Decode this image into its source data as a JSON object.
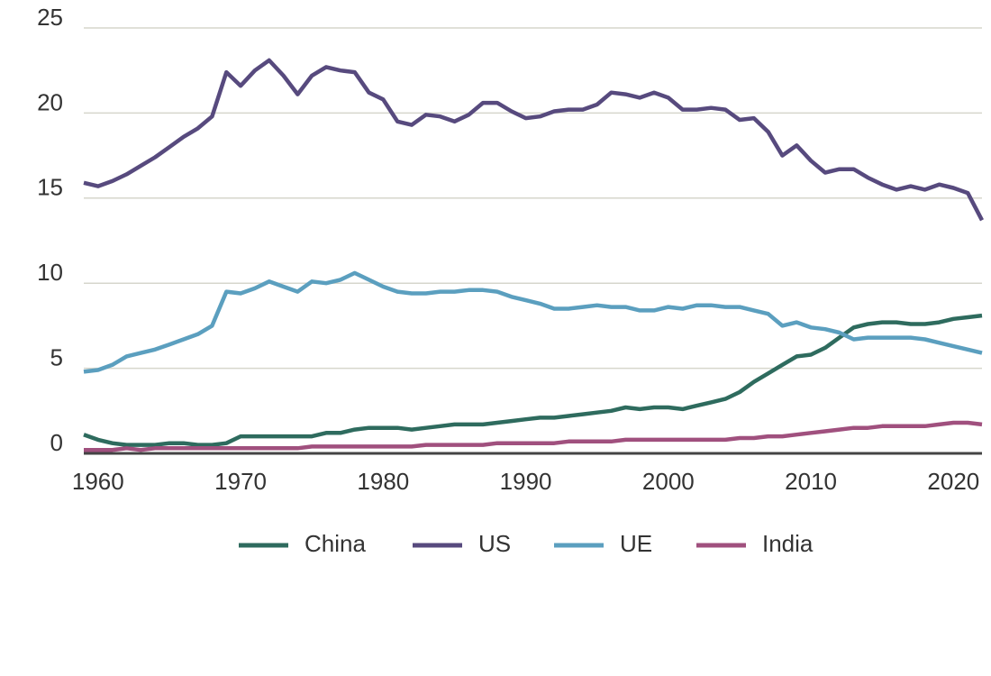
{
  "chart_data": {
    "type": "line",
    "x": [
      1959,
      1960,
      1961,
      1962,
      1963,
      1964,
      1965,
      1966,
      1967,
      1968,
      1969,
      1970,
      1971,
      1972,
      1973,
      1974,
      1975,
      1976,
      1977,
      1978,
      1979,
      1980,
      1981,
      1982,
      1983,
      1984,
      1985,
      1986,
      1987,
      1988,
      1989,
      1990,
      1991,
      1992,
      1993,
      1994,
      1995,
      1996,
      1997,
      1998,
      1999,
      2000,
      2001,
      2002,
      2003,
      2004,
      2005,
      2006,
      2007,
      2008,
      2009,
      2010,
      2011,
      2012,
      2013,
      2014,
      2015,
      2016,
      2017,
      2018,
      2019,
      2020,
      2021,
      2022
    ],
    "series": [
      {
        "name": "China",
        "color": "#2e6b5e",
        "values": [
          1.1,
          0.8,
          0.6,
          0.5,
          0.5,
          0.5,
          0.6,
          0.6,
          0.5,
          0.5,
          0.6,
          1.0,
          1.0,
          1.0,
          1.0,
          1.0,
          1.0,
          1.2,
          1.2,
          1.4,
          1.5,
          1.5,
          1.5,
          1.4,
          1.5,
          1.6,
          1.7,
          1.7,
          1.7,
          1.8,
          1.9,
          2.0,
          2.1,
          2.1,
          2.2,
          2.3,
          2.4,
          2.5,
          2.7,
          2.6,
          2.7,
          2.7,
          2.6,
          2.8,
          3.0,
          3.2,
          3.6,
          4.2,
          4.7,
          5.2,
          5.7,
          5.8,
          6.2,
          6.8,
          7.4,
          7.6,
          7.7,
          7.7,
          7.6,
          7.6,
          7.7,
          7.9,
          8.0,
          8.1
        ]
      },
      {
        "name": "US",
        "color": "#574a7e",
        "values": [
          15.9,
          15.7,
          16.0,
          16.4,
          16.9,
          17.4,
          18.0,
          18.6,
          19.1,
          19.8,
          22.4,
          21.6,
          22.5,
          23.1,
          22.2,
          21.1,
          22.2,
          22.7,
          22.5,
          22.4,
          21.2,
          20.8,
          19.5,
          19.3,
          19.9,
          19.8,
          19.5,
          19.9,
          20.6,
          20.6,
          20.1,
          19.7,
          19.8,
          20.1,
          20.2,
          20.2,
          20.5,
          21.2,
          21.1,
          20.9,
          21.2,
          20.9,
          20.2,
          20.2,
          20.3,
          20.2,
          19.6,
          19.7,
          18.9,
          17.5,
          18.1,
          17.2,
          16.5,
          16.7,
          16.7,
          16.2,
          15.8,
          15.5,
          15.7,
          15.5,
          15.8,
          15.6,
          15.3,
          13.7
        ]
      },
      {
        "name": "UE",
        "color": "#5b9fbf",
        "values": [
          4.8,
          4.9,
          5.2,
          5.7,
          5.9,
          6.1,
          6.4,
          6.7,
          7.0,
          7.5,
          9.5,
          9.4,
          9.7,
          10.1,
          9.8,
          9.5,
          10.1,
          10.0,
          10.2,
          10.6,
          10.2,
          9.8,
          9.5,
          9.4,
          9.4,
          9.5,
          9.5,
          9.6,
          9.6,
          9.5,
          9.2,
          9.0,
          8.8,
          8.5,
          8.5,
          8.6,
          8.7,
          8.6,
          8.6,
          8.4,
          8.4,
          8.6,
          8.5,
          8.7,
          8.7,
          8.6,
          8.6,
          8.4,
          8.2,
          7.5,
          7.7,
          7.4,
          7.3,
          7.1,
          6.7,
          6.8,
          6.8,
          6.8,
          6.8,
          6.7,
          6.5,
          6.3,
          6.1,
          5.9
        ]
      },
      {
        "name": "India",
        "color": "#a0507e",
        "values": [
          0.2,
          0.2,
          0.2,
          0.3,
          0.2,
          0.3,
          0.3,
          0.3,
          0.3,
          0.3,
          0.3,
          0.3,
          0.3,
          0.3,
          0.3,
          0.3,
          0.4,
          0.4,
          0.4,
          0.4,
          0.4,
          0.4,
          0.4,
          0.4,
          0.5,
          0.5,
          0.5,
          0.5,
          0.5,
          0.6,
          0.6,
          0.6,
          0.6,
          0.6,
          0.7,
          0.7,
          0.7,
          0.7,
          0.8,
          0.8,
          0.8,
          0.8,
          0.8,
          0.8,
          0.8,
          0.8,
          0.9,
          0.9,
          1.0,
          1.0,
          1.1,
          1.2,
          1.3,
          1.4,
          1.5,
          1.5,
          1.6,
          1.6,
          1.6,
          1.6,
          1.7,
          1.8,
          1.8,
          1.7
        ]
      }
    ],
    "xlim": [
      1959,
      2022
    ],
    "xticks": [
      1960,
      1970,
      1980,
      1990,
      2000,
      2010,
      2020
    ],
    "ylim": [
      0,
      25
    ],
    "yticks": [
      0,
      5,
      10,
      15,
      20,
      25
    ],
    "grid": true,
    "legend": "bottom"
  }
}
